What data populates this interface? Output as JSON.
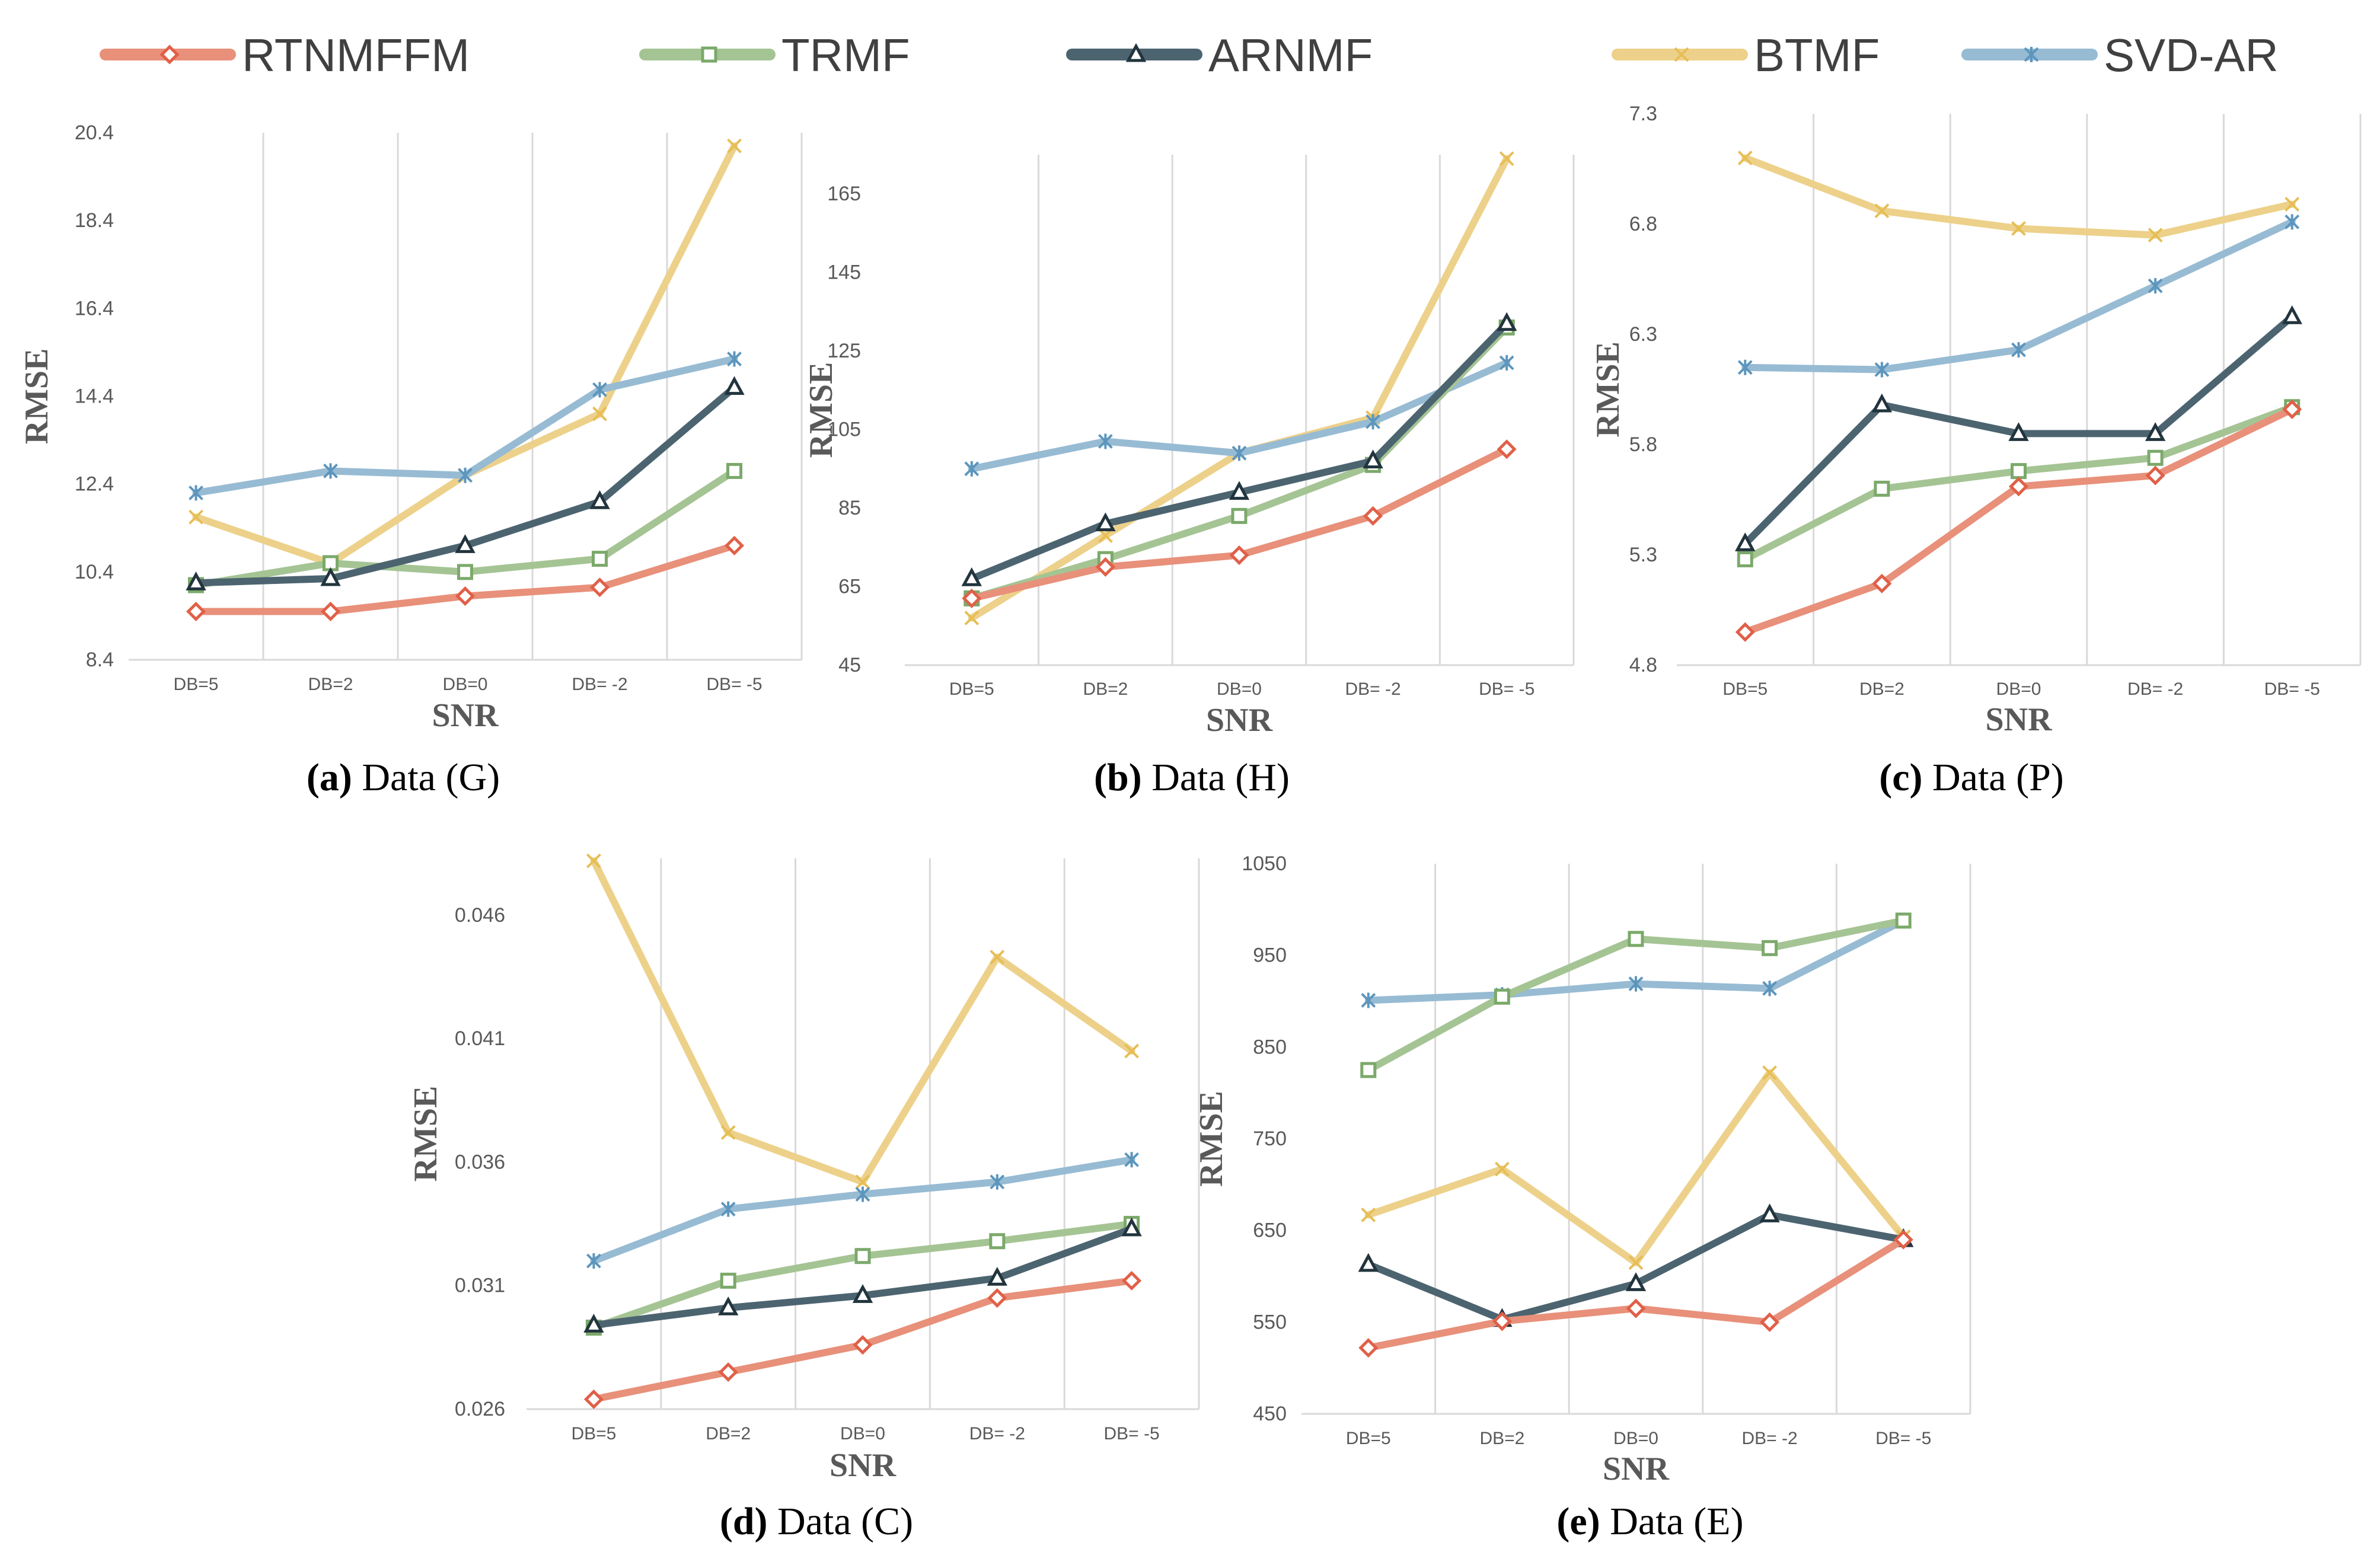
{
  "legend": [
    {
      "name": "RTNMFFM",
      "color": "#E8907A",
      "marker": "diamond"
    },
    {
      "name": "TRMF",
      "color": "#A5C494",
      "marker": "square"
    },
    {
      "name": "ARNMF",
      "color": "#4C6470",
      "marker": "triangle"
    },
    {
      "name": "BTMF",
      "color": "#EDD18A",
      "marker": "x"
    },
    {
      "name": "SVD-AR",
      "color": "#97BBD3",
      "marker": "asterisk"
    }
  ],
  "colors": {
    "RTNMFFM": "#E8907A",
    "TRMF": "#A5C494",
    "ARNMF": "#4C6470",
    "BTMF": "#EDD18A",
    "SVD-AR": "#97BBD3",
    "RTNMFFM_marker": "#E06048",
    "TRMF_marker": "#7BA96A",
    "ARNMF_marker": "#22343D",
    "BTMF_marker": "#E6BE55",
    "SVD-AR_marker": "#5D96BD"
  },
  "chart_data": [
    {
      "id": "a",
      "type": "line",
      "caption_letter": "(a)",
      "caption_text": "Data (G)",
      "xlabel": "SNR",
      "ylabel": "RMSE",
      "categories": [
        "DB=5",
        "DB=2",
        "DB=0",
        "DB= -2",
        "DB= -5"
      ],
      "yticks": [
        "8.4",
        "10.4",
        "12.4",
        "14.4",
        "16.4",
        "18.4",
        "20.4"
      ],
      "ylim": [
        8.4,
        20.4
      ],
      "grid": "vertical",
      "series": [
        {
          "name": "RTNMFFM",
          "values": [
            9.5,
            9.5,
            9.85,
            10.05,
            11.0
          ]
        },
        {
          "name": "TRMF",
          "values": [
            10.1,
            10.6,
            10.4,
            10.7,
            12.7
          ]
        },
        {
          "name": "ARNMF",
          "values": [
            10.15,
            10.25,
            11.0,
            12.0,
            14.6
          ]
        },
        {
          "name": "BTMF",
          "values": [
            11.65,
            10.6,
            12.6,
            14.0,
            20.1
          ]
        },
        {
          "name": "SVD-AR",
          "values": [
            12.2,
            12.7,
            12.6,
            14.55,
            15.25
          ]
        }
      ]
    },
    {
      "id": "b",
      "type": "line",
      "caption_letter": "(b)",
      "caption_text": "Data (H)",
      "xlabel": "SNR",
      "ylabel": "RMSE",
      "categories": [
        "DB=5",
        "DB=2",
        "DB=0",
        "DB= -2",
        "DB= -5"
      ],
      "yticks": [
        "45",
        "65",
        "85",
        "105",
        "125",
        "145",
        "165"
      ],
      "ylim": [
        45,
        175
      ],
      "grid": "vertical",
      "series": [
        {
          "name": "RTNMFFM",
          "values": [
            62,
            70,
            73,
            83,
            100
          ]
        },
        {
          "name": "TRMF",
          "values": [
            62,
            72,
            83,
            96,
            131
          ]
        },
        {
          "name": "ARNMF",
          "values": [
            67,
            81,
            89,
            97,
            132
          ]
        },
        {
          "name": "BTMF",
          "values": [
            57,
            78,
            99,
            108,
            174
          ]
        },
        {
          "name": "SVD-AR",
          "values": [
            95,
            102,
            99,
            107,
            122
          ]
        }
      ]
    },
    {
      "id": "c",
      "type": "line",
      "caption_letter": "(c)",
      "caption_text": "Data (P)",
      "xlabel": "SNR",
      "ylabel": "RMSE",
      "categories": [
        "DB=5",
        "DB=2",
        "DB=0",
        "DB= -2",
        "DB= -5"
      ],
      "yticks": [
        "4.8",
        "5.3",
        "5.8",
        "6.3",
        "6.8",
        "7.3"
      ],
      "ylim": [
        4.8,
        7.3
      ],
      "grid": "vertical",
      "series": [
        {
          "name": "RTNMFFM",
          "values": [
            4.95,
            5.17,
            5.61,
            5.66,
            5.96
          ]
        },
        {
          "name": "TRMF",
          "values": [
            5.28,
            5.6,
            5.68,
            5.74,
            5.97
          ]
        },
        {
          "name": "ARNMF",
          "values": [
            5.35,
            5.98,
            5.85,
            5.85,
            6.38
          ]
        },
        {
          "name": "BTMF",
          "values": [
            7.1,
            6.86,
            6.78,
            6.75,
            6.89
          ]
        },
        {
          "name": "SVD-AR",
          "values": [
            6.15,
            6.14,
            6.23,
            6.52,
            6.81
          ]
        }
      ]
    },
    {
      "id": "d",
      "type": "line",
      "caption_letter": "(d)",
      "caption_text": "Data (C)",
      "xlabel": "SNR",
      "ylabel": "RMSE",
      "categories": [
        "DB=5",
        "DB=2",
        "DB=0",
        "DB= -2",
        "DB= -5"
      ],
      "yticks": [
        "0.026",
        "0.031",
        "0.036",
        "0.041",
        "0.046"
      ],
      "ylim": [
        0.026,
        0.0483
      ],
      "grid": "vertical",
      "series": [
        {
          "name": "RTNMFFM",
          "values": [
            0.0264,
            0.0275,
            0.0286,
            0.0305,
            0.0312
          ]
        },
        {
          "name": "TRMF",
          "values": [
            0.0293,
            0.0312,
            0.0322,
            0.0328,
            0.0335
          ]
        },
        {
          "name": "ARNMF",
          "values": [
            0.0294,
            0.0301,
            0.0306,
            0.0313,
            0.0333
          ]
        },
        {
          "name": "BTMF",
          "values": [
            0.0482,
            0.0372,
            0.0352,
            0.0443,
            0.0405
          ]
        },
        {
          "name": "SVD-AR",
          "values": [
            0.032,
            0.0341,
            0.0347,
            0.0352,
            0.0361
          ]
        }
      ]
    },
    {
      "id": "e",
      "type": "line",
      "caption_letter": "(e)",
      "caption_text": "Data (E)",
      "xlabel": "SNR",
      "ylabel": "RMSE",
      "categories": [
        "DB=5",
        "DB=2",
        "DB=0",
        "DB= -2",
        "DB= -5"
      ],
      "yticks": [
        "450",
        "550",
        "650",
        "750",
        "850",
        "950",
        "1050"
      ],
      "ylim": [
        450,
        1050
      ],
      "grid": "vertical",
      "series": [
        {
          "name": "RTNMFFM",
          "values": [
            522,
            551,
            565,
            550,
            640
          ]
        },
        {
          "name": "TRMF",
          "values": [
            825,
            905,
            968,
            958,
            988
          ]
        },
        {
          "name": "ARNMF",
          "values": [
            613,
            553,
            592,
            667,
            640
          ]
        },
        {
          "name": "BTMF",
          "values": [
            667,
            717,
            615,
            822,
            643
          ]
        },
        {
          "name": "SVD-AR",
          "values": [
            901,
            907,
            919,
            914,
            988
          ]
        }
      ]
    }
  ]
}
